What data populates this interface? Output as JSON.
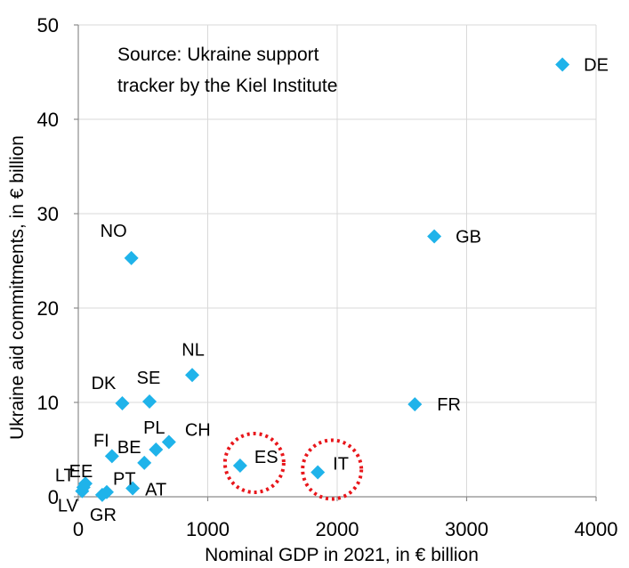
{
  "chart_data": {
    "type": "scatter",
    "title": "",
    "annotation_lines": [
      "Source: Ukraine support",
      "tracker by the Kiel Institute"
    ],
    "xlabel": "Nominal GDP in 2021, in € billion",
    "ylabel": "Ukraine aid commitments, in € billion",
    "xlim": [
      0,
      4000
    ],
    "ylim": [
      0,
      50
    ],
    "xticks": [
      0,
      1000,
      2000,
      3000,
      4000
    ],
    "yticks": [
      0,
      10,
      20,
      30,
      40,
      50
    ],
    "grid": true,
    "marker": "diamond",
    "marker_color": "#1fb3ea",
    "highlight_color": "#e8161b",
    "highlighted": [
      "ES",
      "IT"
    ],
    "points": [
      {
        "label": "DE",
        "x": 3740,
        "y": 45.8
      },
      {
        "label": "GB",
        "x": 2750,
        "y": 27.6
      },
      {
        "label": "FR",
        "x": 2600,
        "y": 9.8
      },
      {
        "label": "NO",
        "x": 410,
        "y": 25.3
      },
      {
        "label": "NL",
        "x": 880,
        "y": 12.9
      },
      {
        "label": "DK",
        "x": 340,
        "y": 9.9
      },
      {
        "label": "SE",
        "x": 550,
        "y": 10.1
      },
      {
        "label": "PL",
        "x": 600,
        "y": 5.0
      },
      {
        "label": "CH",
        "x": 700,
        "y": 5.8
      },
      {
        "label": "BE",
        "x": 510,
        "y": 3.6
      },
      {
        "label": "FI",
        "x": 260,
        "y": 4.3
      },
      {
        "label": "AT",
        "x": 420,
        "y": 0.9
      },
      {
        "label": "ES",
        "x": 1250,
        "y": 3.3
      },
      {
        "label": "IT",
        "x": 1850,
        "y": 2.6
      },
      {
        "label": "EE",
        "x": 55,
        "y": 1.4
      },
      {
        "label": "LT",
        "x": 40,
        "y": 1.0
      },
      {
        "label": "LV",
        "x": 30,
        "y": 0.6
      },
      {
        "label": "PT",
        "x": 220,
        "y": 0.5
      },
      {
        "label": "GR",
        "x": 185,
        "y": 0.2
      }
    ]
  }
}
